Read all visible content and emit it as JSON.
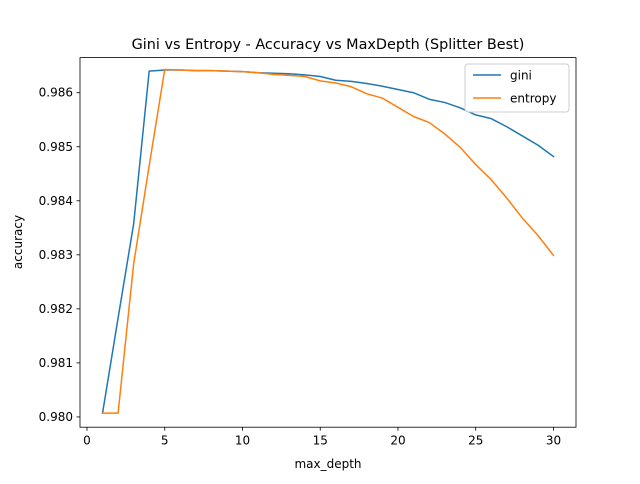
{
  "chart_data": {
    "type": "line",
    "title": "Gini vs Entropy - Accuracy vs MaxDepth (Splitter Best)",
    "xlabel": "max_depth",
    "ylabel": "accuracy",
    "xlim": [
      -0.45,
      31.45
    ],
    "ylim": [
      0.97981,
      0.98665
    ],
    "xticks": [
      0,
      5,
      10,
      15,
      20,
      25,
      30
    ],
    "xtick_labels": [
      "0",
      "5",
      "10",
      "15",
      "20",
      "25",
      "30"
    ],
    "yticks": [
      0.98,
      0.981,
      0.982,
      0.983,
      0.984,
      0.985,
      0.986
    ],
    "ytick_labels": [
      "0.980",
      "0.981",
      "0.982",
      "0.983",
      "0.984",
      "0.985",
      "0.986"
    ],
    "grid": false,
    "legend_position": "top-right",
    "x": [
      1,
      2,
      3,
      4,
      5,
      6,
      7,
      8,
      9,
      10,
      11,
      12,
      13,
      14,
      15,
      16,
      17,
      18,
      19,
      20,
      21,
      22,
      23,
      24,
      25,
      26,
      27,
      28,
      29,
      30
    ],
    "series": [
      {
        "name": "gini",
        "color": "#1f77b4",
        "values": [
          0.98007,
          0.98183,
          0.98357,
          0.9864,
          0.98642,
          0.98642,
          0.98641,
          0.98641,
          0.9864,
          0.98639,
          0.98637,
          0.98636,
          0.98635,
          0.98633,
          0.9863,
          0.98623,
          0.98621,
          0.98617,
          0.98612,
          0.98606,
          0.986,
          0.98588,
          0.98582,
          0.98572,
          0.98559,
          0.98552,
          0.98537,
          0.9852,
          0.98503,
          0.98482
        ]
      },
      {
        "name": "entropy",
        "color": "#ff7f0e",
        "values": [
          0.98007,
          0.98007,
          0.98283,
          0.98465,
          0.98643,
          0.98642,
          0.98641,
          0.98641,
          0.9864,
          0.98639,
          0.98637,
          0.98634,
          0.98632,
          0.9863,
          0.98622,
          0.98618,
          0.98611,
          0.98598,
          0.9859,
          0.98573,
          0.98556,
          0.98545,
          0.98524,
          0.98499,
          0.98467,
          0.98439,
          0.98405,
          0.98368,
          0.98336,
          0.98299
        ]
      }
    ]
  }
}
